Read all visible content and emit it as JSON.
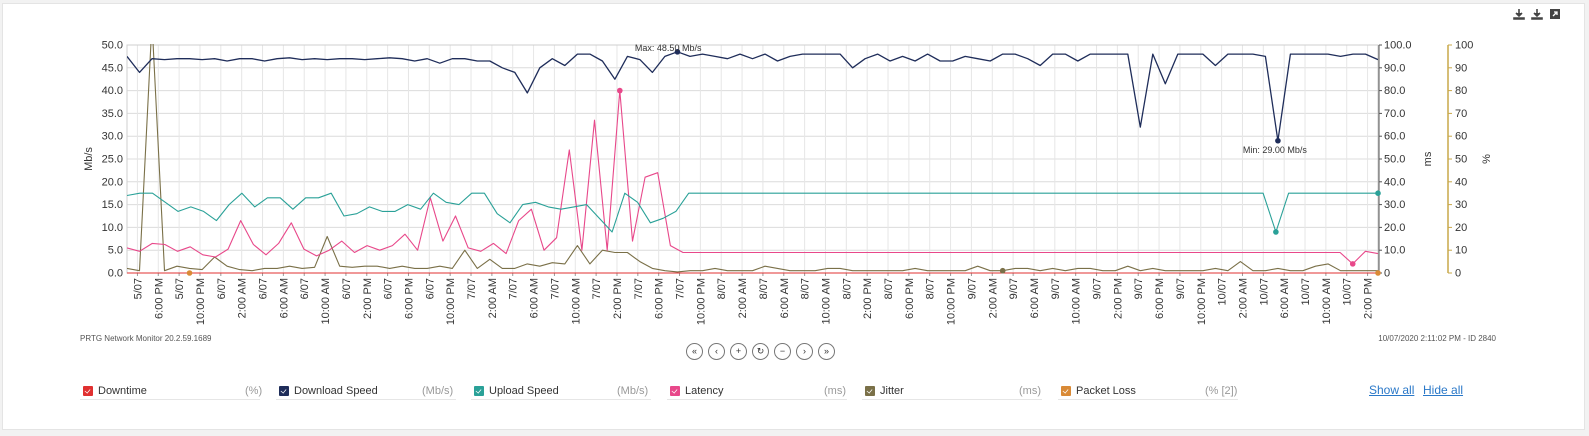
{
  "toolbar": {
    "icons": [
      "download-icon",
      "download-icon",
      "expand-icon"
    ]
  },
  "chart_data": {
    "type": "line",
    "xlabel": "",
    "grid": true,
    "axes": {
      "left": {
        "label": "Mb/s",
        "range": [
          0,
          50
        ],
        "ticks": [
          "0.0",
          "5.0",
          "10.0",
          "15.0",
          "20.0",
          "25.0",
          "30.0",
          "35.0",
          "40.0",
          "45.0",
          "50.0"
        ]
      },
      "right1": {
        "label": "ms",
        "range": [
          0,
          100
        ],
        "ticks": [
          "0",
          "10.0",
          "20.0",
          "30.0",
          "40.0",
          "50.0",
          "60.0",
          "70.0",
          "80.0",
          "90.0",
          "100.0"
        ]
      },
      "right2": {
        "label": "%",
        "range": [
          0,
          100
        ],
        "ticks": [
          "0",
          "10",
          "20",
          "30",
          "40",
          "50",
          "60",
          "70",
          "80",
          "90",
          "100"
        ]
      }
    },
    "x_ticks": [
      "5/07",
      "6:00 PM",
      "5/07",
      "10:00 PM",
      "6/07",
      "2:00 AM",
      "6/07",
      "6:00 AM",
      "6/07",
      "10:00 AM",
      "6/07",
      "2:00 PM",
      "6/07",
      "6:00 PM",
      "6/07",
      "10:00 PM",
      "7/07",
      "2:00 AM",
      "7/07",
      "6:00 AM",
      "7/07",
      "10:00 AM",
      "7/07",
      "2:00 PM",
      "7/07",
      "6:00 PM",
      "7/07",
      "10:00 PM",
      "8/07",
      "2:00 AM",
      "8/07",
      "6:00 AM",
      "8/07",
      "10:00 AM",
      "8/07",
      "2:00 PM",
      "8/07",
      "6:00 PM",
      "8/07",
      "10:00 PM",
      "9/07",
      "2:00 AM",
      "9/07",
      "6:00 AM",
      "9/07",
      "10:00 AM",
      "9/07",
      "2:00 PM",
      "9/07",
      "6:00 PM",
      "9/07",
      "10:00 PM",
      "10/07",
      "2:00 AM",
      "10/07",
      "6:00 AM",
      "10/07",
      "10:00 AM",
      "10/07",
      "2:00 PM"
    ],
    "annotations": [
      {
        "text": "Max: 48.50 Mb/s",
        "series": "Download Speed",
        "x": 43,
        "y": 48.5
      },
      {
        "text": "Min: 29.00 Mb/s",
        "series": "Download Speed",
        "x": 92,
        "y": 29.0
      }
    ],
    "series": [
      {
        "name": "Download Speed",
        "axis": "left",
        "color": "#1f2d5a",
        "values": [
          47.5,
          44,
          47,
          46.8,
          47,
          47,
          46.8,
          47,
          46.5,
          47,
          47,
          46.5,
          47,
          47.2,
          46.8,
          47,
          46.8,
          47,
          47,
          46.8,
          47,
          47.2,
          47,
          46.5,
          47,
          46,
          47,
          47,
          46.5,
          46.5,
          45,
          44,
          39.5,
          45,
          47,
          45.5,
          48,
          48,
          46.5,
          42.5,
          47.5,
          46.8,
          44,
          47.5,
          48.5,
          47.5,
          48,
          47.5,
          47,
          48,
          47,
          48,
          46.5,
          47.5,
          48,
          48,
          48,
          48,
          45,
          47,
          48,
          46.5,
          47.5,
          46.5,
          48,
          46.5,
          46.5,
          47.5,
          47,
          46.5,
          48,
          48,
          47,
          45.5,
          48,
          48,
          46.5,
          48,
          48,
          48,
          48,
          32,
          48,
          41.5,
          48,
          48,
          48,
          45.5,
          48,
          48,
          48,
          47.5,
          29,
          48,
          48,
          48,
          48,
          47.5,
          48,
          48,
          46.8
        ]
      },
      {
        "name": "Upload Speed",
        "axis": "left",
        "color": "#2aa198",
        "values": [
          17,
          17.5,
          17.5,
          15.5,
          13.5,
          14.5,
          13.5,
          11.5,
          15,
          17.5,
          14.5,
          16.5,
          16.5,
          14,
          16.5,
          16.5,
          17.5,
          12.5,
          13,
          14.5,
          13.5,
          13.5,
          15,
          14,
          17.5,
          15.5,
          15,
          17.5,
          17.5,
          13,
          11,
          15,
          15.5,
          14.5,
          14,
          14.5,
          15,
          12,
          9,
          17.5,
          15.5,
          11,
          12,
          13.5,
          17.5,
          17.5,
          17.5,
          17.5,
          17.5,
          17.5,
          17.5,
          17.5,
          17.5,
          17.5,
          17.5,
          17.5,
          17.5,
          17.5,
          17.5,
          17.5,
          17.5,
          17.5,
          17.5,
          17.5,
          17.5,
          17.5,
          17.5,
          17.5,
          17.5,
          17.5,
          17.5,
          17.5,
          17.5,
          17.5,
          17.5,
          17.5,
          17.5,
          17.5,
          17.5,
          17.5,
          17.5,
          17.5,
          17.5,
          17.5,
          17.5,
          17.5,
          17.5,
          17.5,
          17.5,
          17.5,
          9,
          17.5,
          17.5,
          17.5,
          17.5,
          17.5,
          17.5,
          17.5,
          17.5
        ]
      },
      {
        "name": "Latency",
        "axis": "right1",
        "color": "#e8488a",
        "values": [
          11,
          9.5,
          13,
          12.5,
          9.5,
          11.5,
          8,
          7,
          10.5,
          23,
          12.5,
          8,
          13,
          22,
          10.5,
          7.5,
          10,
          14,
          9,
          12,
          10,
          12,
          17,
          10,
          33,
          14,
          25,
          11,
          9.5,
          13,
          8.5,
          23,
          28,
          10,
          15.5,
          54,
          10,
          67,
          10,
          80,
          14,
          42,
          44,
          12,
          9,
          9,
          9,
          9,
          9,
          9,
          9,
          9,
          9,
          9,
          9,
          9,
          9,
          9,
          9,
          9,
          9,
          9,
          9,
          9,
          9,
          9,
          9,
          9,
          9,
          9,
          9,
          9,
          9,
          9,
          9,
          9,
          9,
          9,
          9,
          9,
          9,
          9,
          9,
          9,
          9,
          9,
          9,
          9,
          9,
          9,
          9,
          9,
          9,
          9,
          9,
          9,
          9,
          4,
          9.5,
          8.5
        ]
      },
      {
        "name": "Jitter",
        "axis": "right1",
        "color": "#7a7048",
        "values": [
          2,
          1,
          110,
          1,
          3,
          2,
          1.5,
          7,
          3,
          1.5,
          1,
          2,
          2,
          3,
          2,
          2.5,
          16,
          3,
          2.5,
          3,
          3,
          2,
          3,
          2,
          2,
          3,
          2,
          10,
          2,
          6,
          2,
          2,
          4,
          3,
          4.5,
          4,
          12,
          4,
          10,
          9,
          9,
          5,
          2,
          1,
          0.5,
          1,
          1,
          2,
          1,
          1,
          1,
          3,
          2,
          1,
          1,
          1,
          2,
          2,
          1,
          1,
          1,
          1,
          1,
          2,
          1,
          1,
          1,
          1,
          3,
          1,
          1,
          2,
          2,
          1,
          2,
          1,
          2,
          2,
          1,
          1,
          3,
          1,
          2,
          1,
          1,
          1,
          1,
          2,
          1,
          5,
          1,
          1,
          2,
          1,
          1,
          3,
          4,
          1,
          1,
          1,
          1
        ]
      },
      {
        "name": "Packet Loss",
        "axis": "right2",
        "color": "#d98a36",
        "values": [
          0,
          0,
          0,
          0,
          0,
          0,
          0,
          0,
          0,
          0,
          0,
          0,
          0,
          0,
          0,
          0,
          0,
          0,
          0,
          0,
          0
        ]
      },
      {
        "name": "Downtime",
        "axis": "right2",
        "color": "#e03030",
        "values": [
          0,
          0,
          0,
          0,
          0,
          0,
          0,
          0,
          0,
          0,
          0,
          0,
          0,
          0,
          0,
          0,
          0,
          0,
          0,
          0,
          0
        ]
      }
    ]
  },
  "footer": {
    "left": "PRTG Network Monitor 20.2.59.1689",
    "right": "10/07/2020 2:11:02 PM - ID 2840"
  },
  "nav": {
    "first": "«",
    "prev": "‹",
    "zoom_in": "+",
    "reset": "↻",
    "zoom_out": "−",
    "next": "›",
    "last": "»"
  },
  "legend": [
    {
      "name": "Downtime",
      "unit": "(%)",
      "color": "#e03030"
    },
    {
      "name": "Download Speed",
      "unit": "(Mb/s)",
      "color": "#1f2d5a"
    },
    {
      "name": "Upload Speed",
      "unit": "(Mb/s)",
      "color": "#2aa198"
    },
    {
      "name": "Latency",
      "unit": "(ms)",
      "color": "#e8488a"
    },
    {
      "name": "Jitter",
      "unit": "(ms)",
      "color": "#7a7048"
    },
    {
      "name": "Packet Loss",
      "unit": "(% [2])",
      "color": "#d98a36"
    }
  ],
  "links": {
    "show_all": "Show all",
    "hide_all": "Hide all"
  }
}
